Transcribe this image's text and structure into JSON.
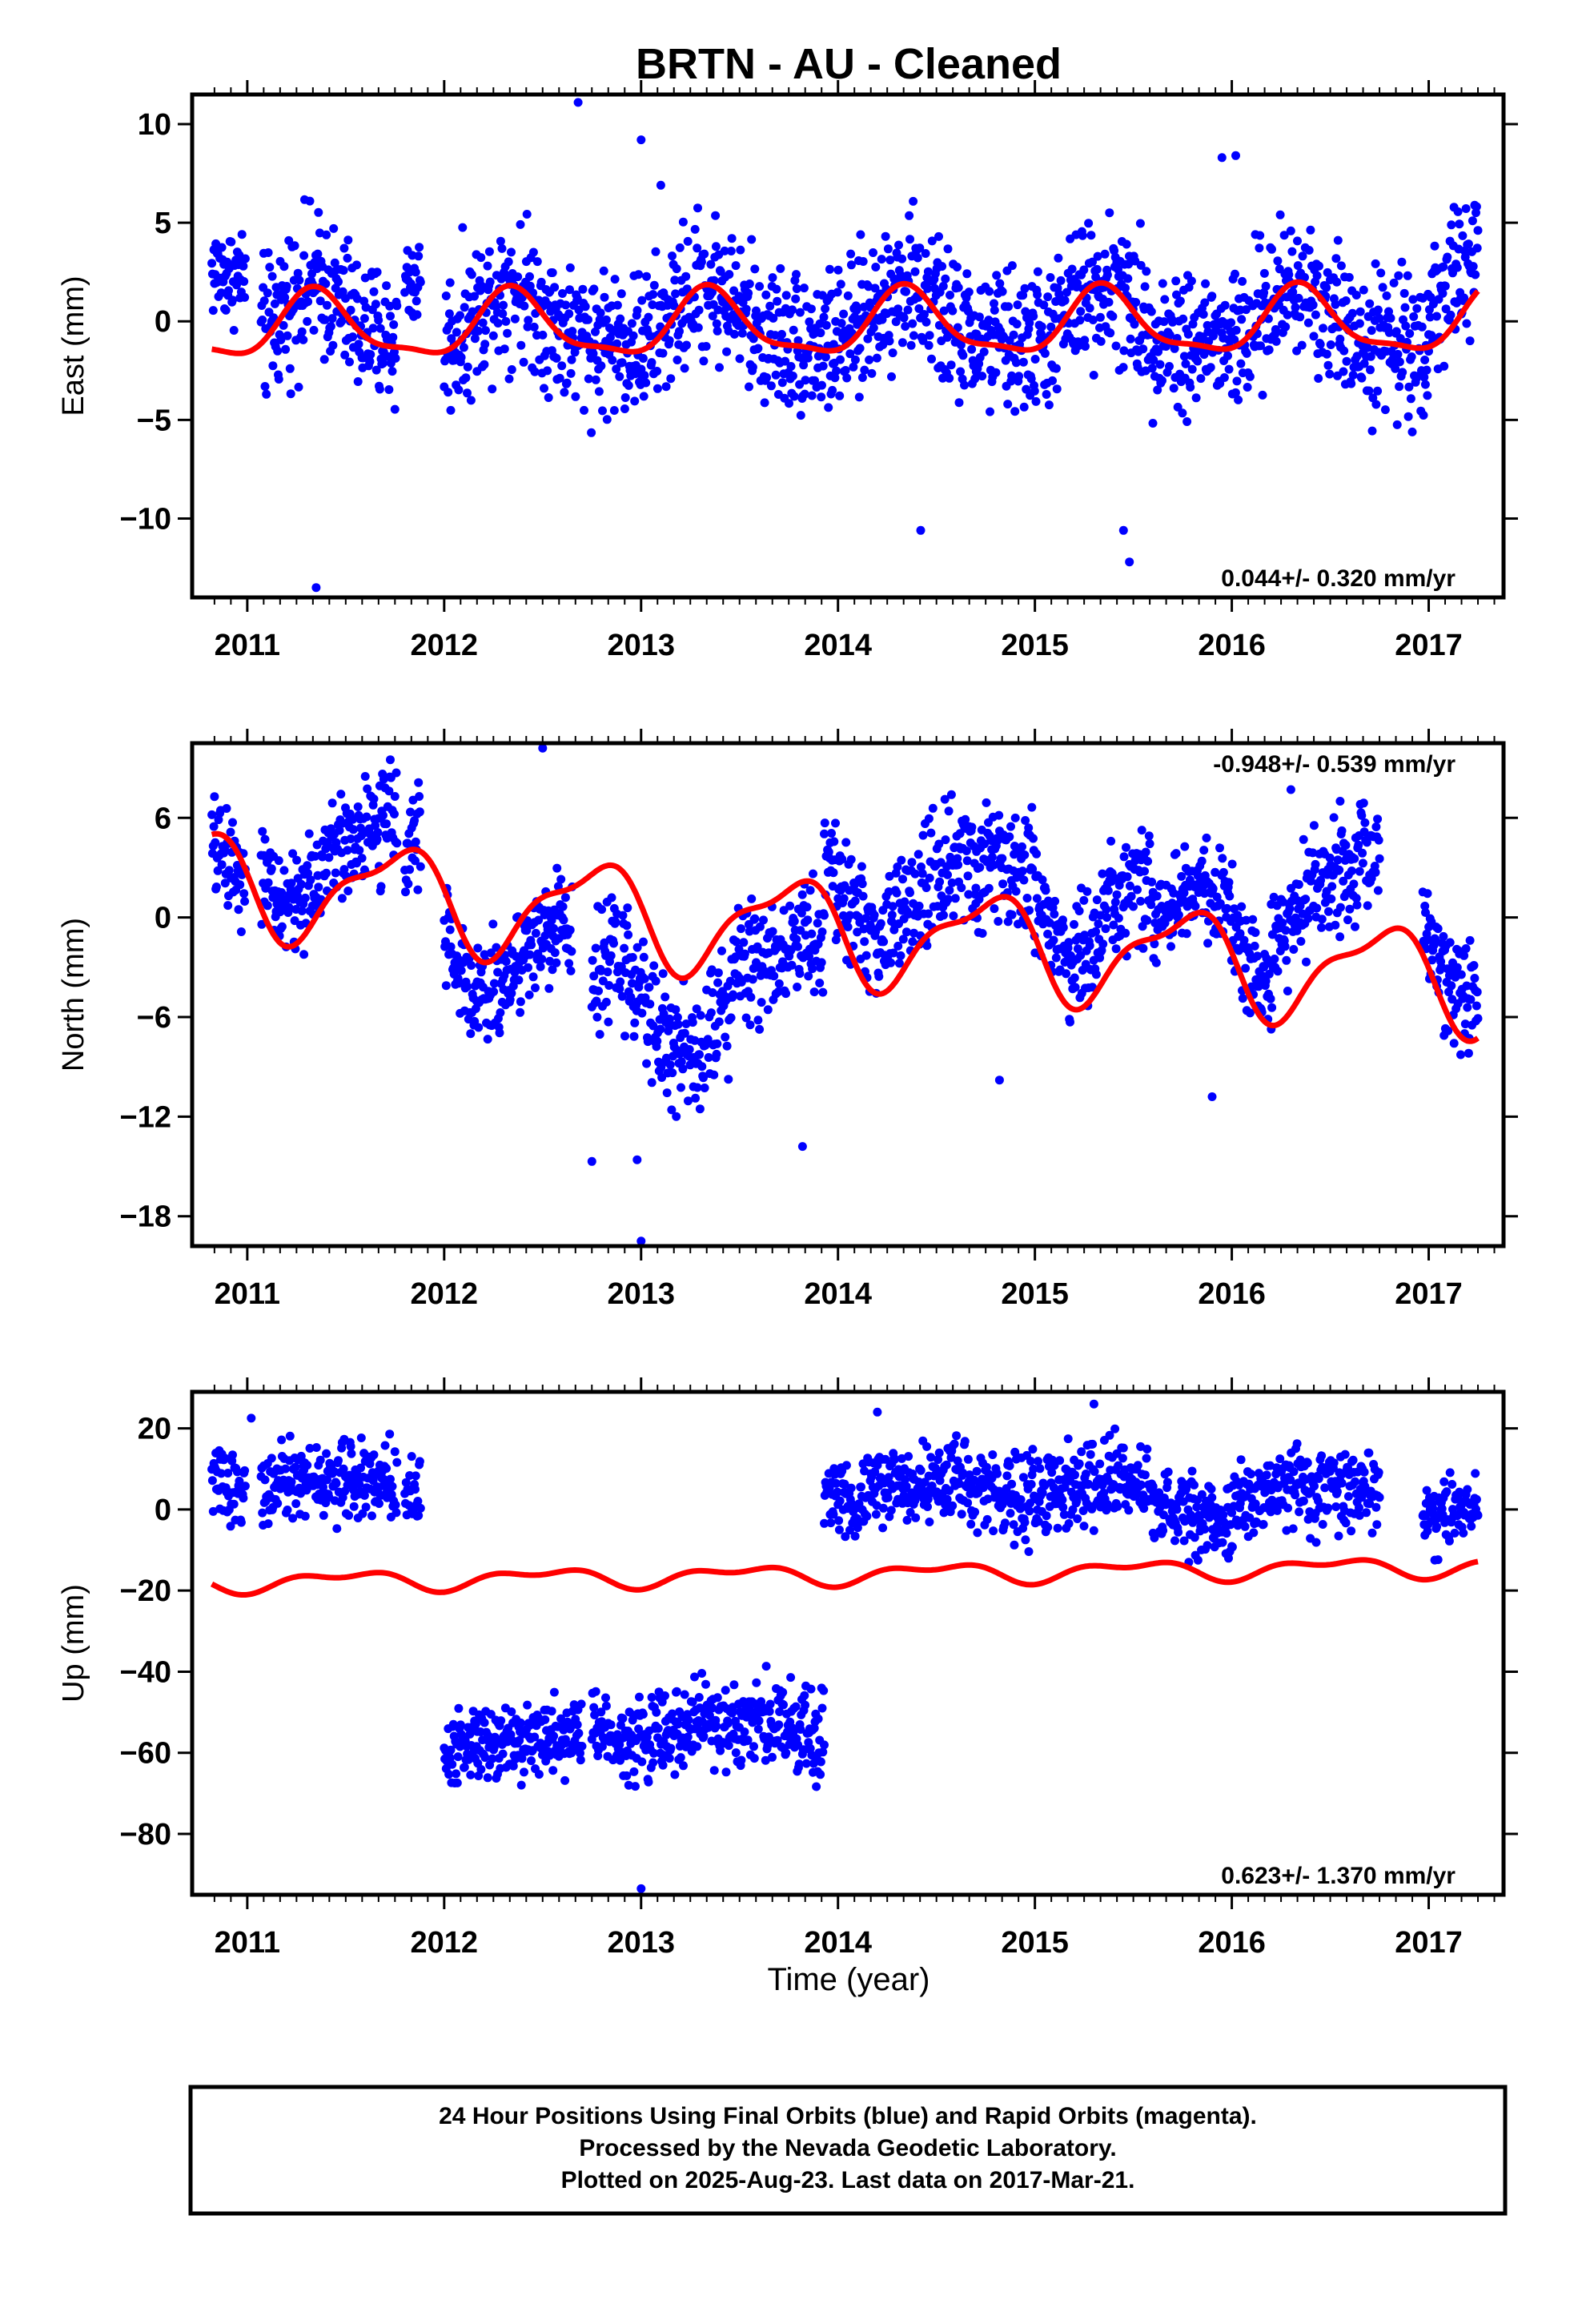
{
  "title": "BRTN  - AU - Cleaned",
  "xlabel": "Time (year)",
  "year_ticks": [
    "2011",
    "2012",
    "2013",
    "2014",
    "2015",
    "2016",
    "2017"
  ],
  "footer": [
    "24 Hour Positions Using Final Orbits (blue) and Rapid Orbits (magenta).",
    "Processed by the Nevada Geodetic Laboratory.",
    "Plotted on 2025-Aug-23. Last data on 2017-Mar-21."
  ],
  "colors": {
    "points": "#0000ff",
    "model": "#ff0000",
    "axes": "#000000"
  },
  "chart_data": [
    {
      "type": "scatter",
      "name": "east",
      "ylabel": "East (mm)",
      "rate": "0.044+/- 0.320 mm/yr",
      "xlim": [
        2010.72,
        2017.38
      ],
      "ylim": [
        -14.0,
        11.5
      ],
      "yticks": [
        10,
        5,
        0,
        -5,
        -10
      ],
      "ytick_labels": [
        "10",
        "5",
        "0",
        "−5",
        "−10"
      ],
      "segments": [
        {
          "start": 2010.82,
          "end": 2010.99,
          "base": 3.5,
          "noise": 1.2
        },
        {
          "start": 2011.07,
          "end": 2011.76,
          "base": 0.0,
          "noise": 1.8
        },
        {
          "start": 2011.8,
          "end": 2011.88,
          "base": 3.0,
          "noise": 1.2
        },
        {
          "start": 2012.0,
          "end": 2017.0,
          "base": 0.0,
          "noise": 1.8
        },
        {
          "start": 2017.0,
          "end": 2017.25,
          "base": 2.0,
          "noise": 1.8
        }
      ],
      "model": {
        "offset": -0.2,
        "trend": 0.044,
        "amp1": 1.6,
        "phase1": 0.1,
        "amp2": 0.5,
        "phase2": 0.2
      },
      "outliers": [
        [
          2011.35,
          -13.5
        ],
        [
          2012.68,
          11.1
        ],
        [
          2013.0,
          9.2
        ],
        [
          2013.1,
          6.9
        ],
        [
          2015.45,
          -10.6
        ],
        [
          2015.48,
          -12.2
        ],
        [
          2014.42,
          -10.6
        ],
        [
          2015.95,
          8.3
        ],
        [
          2016.02,
          8.4
        ]
      ]
    },
    {
      "type": "scatter",
      "name": "north",
      "ylabel": "North (mm)",
      "rate": "-0.948+/- 0.539 mm/yr",
      "xlim": [
        2010.72,
        2017.38
      ],
      "ylim": [
        -19.8,
        10.5
      ],
      "yticks": [
        6,
        0,
        -6,
        -12,
        -18
      ],
      "ytick_labels": [
        "6",
        "0",
        "−6",
        "−12",
        "−18"
      ],
      "segments": [
        {
          "start": 2010.82,
          "end": 2010.99,
          "base": 1.5,
          "noise": 1.5
        },
        {
          "start": 2011.07,
          "end": 2011.76,
          "base": 4.0,
          "noise": 1.6
        },
        {
          "start": 2011.8,
          "end": 2011.88,
          "base": 2.5,
          "noise": 1.5
        },
        {
          "start": 2012.0,
          "end": 2012.65,
          "base": -1.5,
          "noise": 1.6
        },
        {
          "start": 2012.75,
          "end": 2013.45,
          "base": -5.0,
          "noise": 1.8
        },
        {
          "start": 2013.45,
          "end": 2013.93,
          "base": -3.5,
          "noise": 1.8
        },
        {
          "start": 2013.93,
          "end": 2014.7,
          "base": 2.0,
          "noise": 1.8
        },
        {
          "start": 2014.7,
          "end": 2015.6,
          "base": 1.0,
          "noise": 1.8
        },
        {
          "start": 2015.6,
          "end": 2016.2,
          "base": -1.0,
          "noise": 1.5
        },
        {
          "start": 2016.2,
          "end": 2016.75,
          "base": 2.0,
          "noise": 1.8
        },
        {
          "start": 2016.97,
          "end": 2017.25,
          "base": -1.5,
          "noise": 1.6
        }
      ],
      "model": {
        "offset": -0.8,
        "trend": -0.948,
        "amp1": 2.8,
        "phase1": 0.5,
        "amp2": 1.0,
        "phase2": 0.3
      },
      "outliers": [
        [
          2012.5,
          10.2
        ],
        [
          2012.75,
          -14.7
        ],
        [
          2012.98,
          -14.6
        ],
        [
          2013.0,
          -19.5
        ],
        [
          2013.82,
          -13.8
        ],
        [
          2014.82,
          -9.8
        ],
        [
          2015.9,
          -10.8
        ],
        [
          2016.3,
          7.7
        ],
        [
          2016.55,
          7.0
        ]
      ]
    },
    {
      "type": "scatter",
      "name": "up",
      "ylabel": "Up (mm)",
      "rate": "0.623+/- 1.370 mm/yr",
      "xlim": [
        2010.72,
        2017.38
      ],
      "ylim": [
        -95.0,
        29.0
      ],
      "yticks": [
        20,
        0,
        -20,
        -40,
        -60,
        -80
      ],
      "ytick_labels": [
        "20",
        "0",
        "−20",
        "−40",
        "−60",
        "−80"
      ],
      "segments": [
        {
          "start": 2010.82,
          "end": 2010.99,
          "base": 8.0,
          "noise": 4.0
        },
        {
          "start": 2011.07,
          "end": 2011.76,
          "base": 6.0,
          "noise": 4.5
        },
        {
          "start": 2011.8,
          "end": 2011.88,
          "base": 5.0,
          "noise": 5.0
        },
        {
          "start": 2012.0,
          "end": 2012.7,
          "base": -57.0,
          "noise": 4.5
        },
        {
          "start": 2012.75,
          "end": 2013.93,
          "base": -54.0,
          "noise": 5.0
        },
        {
          "start": 2013.93,
          "end": 2015.6,
          "base": 5.0,
          "noise": 5.0
        },
        {
          "start": 2015.6,
          "end": 2016.0,
          "base": -2.0,
          "noise": 4.5
        },
        {
          "start": 2016.0,
          "end": 2016.75,
          "base": 4.0,
          "noise": 5.0
        },
        {
          "start": 2016.97,
          "end": 2017.25,
          "base": 0.0,
          "noise": 4.5
        }
      ],
      "model": {
        "offset": -16.0,
        "trend": 0.623,
        "amp1": 2.0,
        "phase1": 0.25,
        "amp2": 1.2,
        "phase2": 0.1
      },
      "outliers": [
        [
          2011.02,
          22.5
        ],
        [
          2013.0,
          -93.5
        ],
        [
          2015.3,
          26.0
        ],
        [
          2014.2,
          24.0
        ]
      ]
    }
  ]
}
